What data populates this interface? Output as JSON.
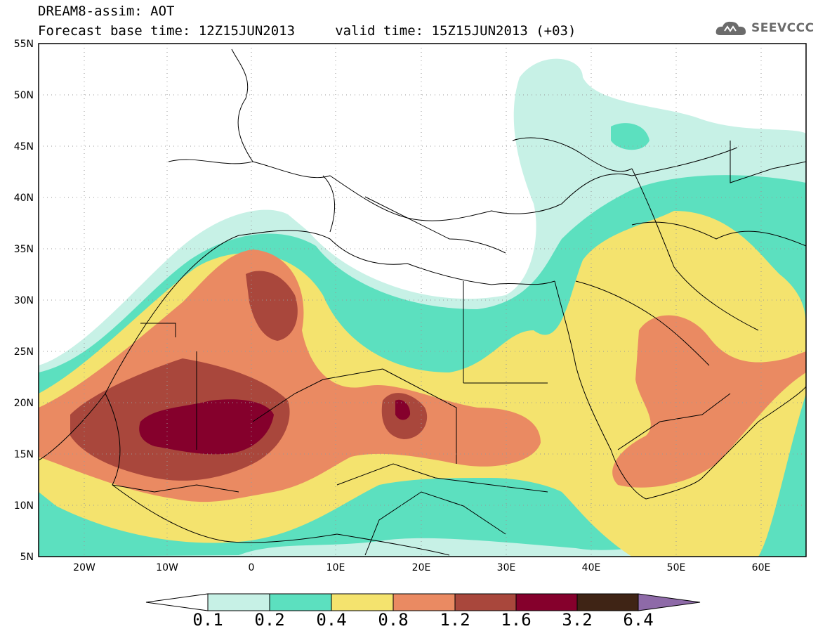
{
  "header": {
    "title": "DREAM8-assim: AOT",
    "subtitle": "Forecast base time: 12Z15JUN2013     valid time: 15Z15JUN2013 (+03)"
  },
  "logo": {
    "text": "SEEVCCC"
  },
  "axes": {
    "lat_labels": [
      "55N",
      "50N",
      "45N",
      "40N",
      "35N",
      "30N",
      "25N",
      "20N",
      "15N",
      "10N",
      "5N"
    ],
    "lon_labels": [
      "20W",
      "10W",
      "0",
      "10E",
      "20E",
      "30E",
      "40E",
      "50E",
      "60E"
    ],
    "lon_range": [
      -25,
      65
    ],
    "lat_range": [
      5,
      55
    ]
  },
  "colorbar": {
    "labels": [
      "0.1",
      "0.2",
      "0.4",
      "0.8",
      "1.2",
      "1.6",
      "3.2",
      "6.4"
    ],
    "colors": [
      "#ffffff",
      "#c7f1e6",
      "#5ce0bf",
      "#f4e36e",
      "#ea8a62",
      "#a9473c",
      "#85002c",
      "#3f2415",
      "#8e6aa8"
    ]
  },
  "fields": {
    "colors": {
      "c1": "#c7f1e6",
      "c2": "#5ce0bf",
      "c3": "#f4e36e",
      "c4": "#ea8a62",
      "c5": "#a9473c",
      "c6": "#85002c"
    }
  }
}
